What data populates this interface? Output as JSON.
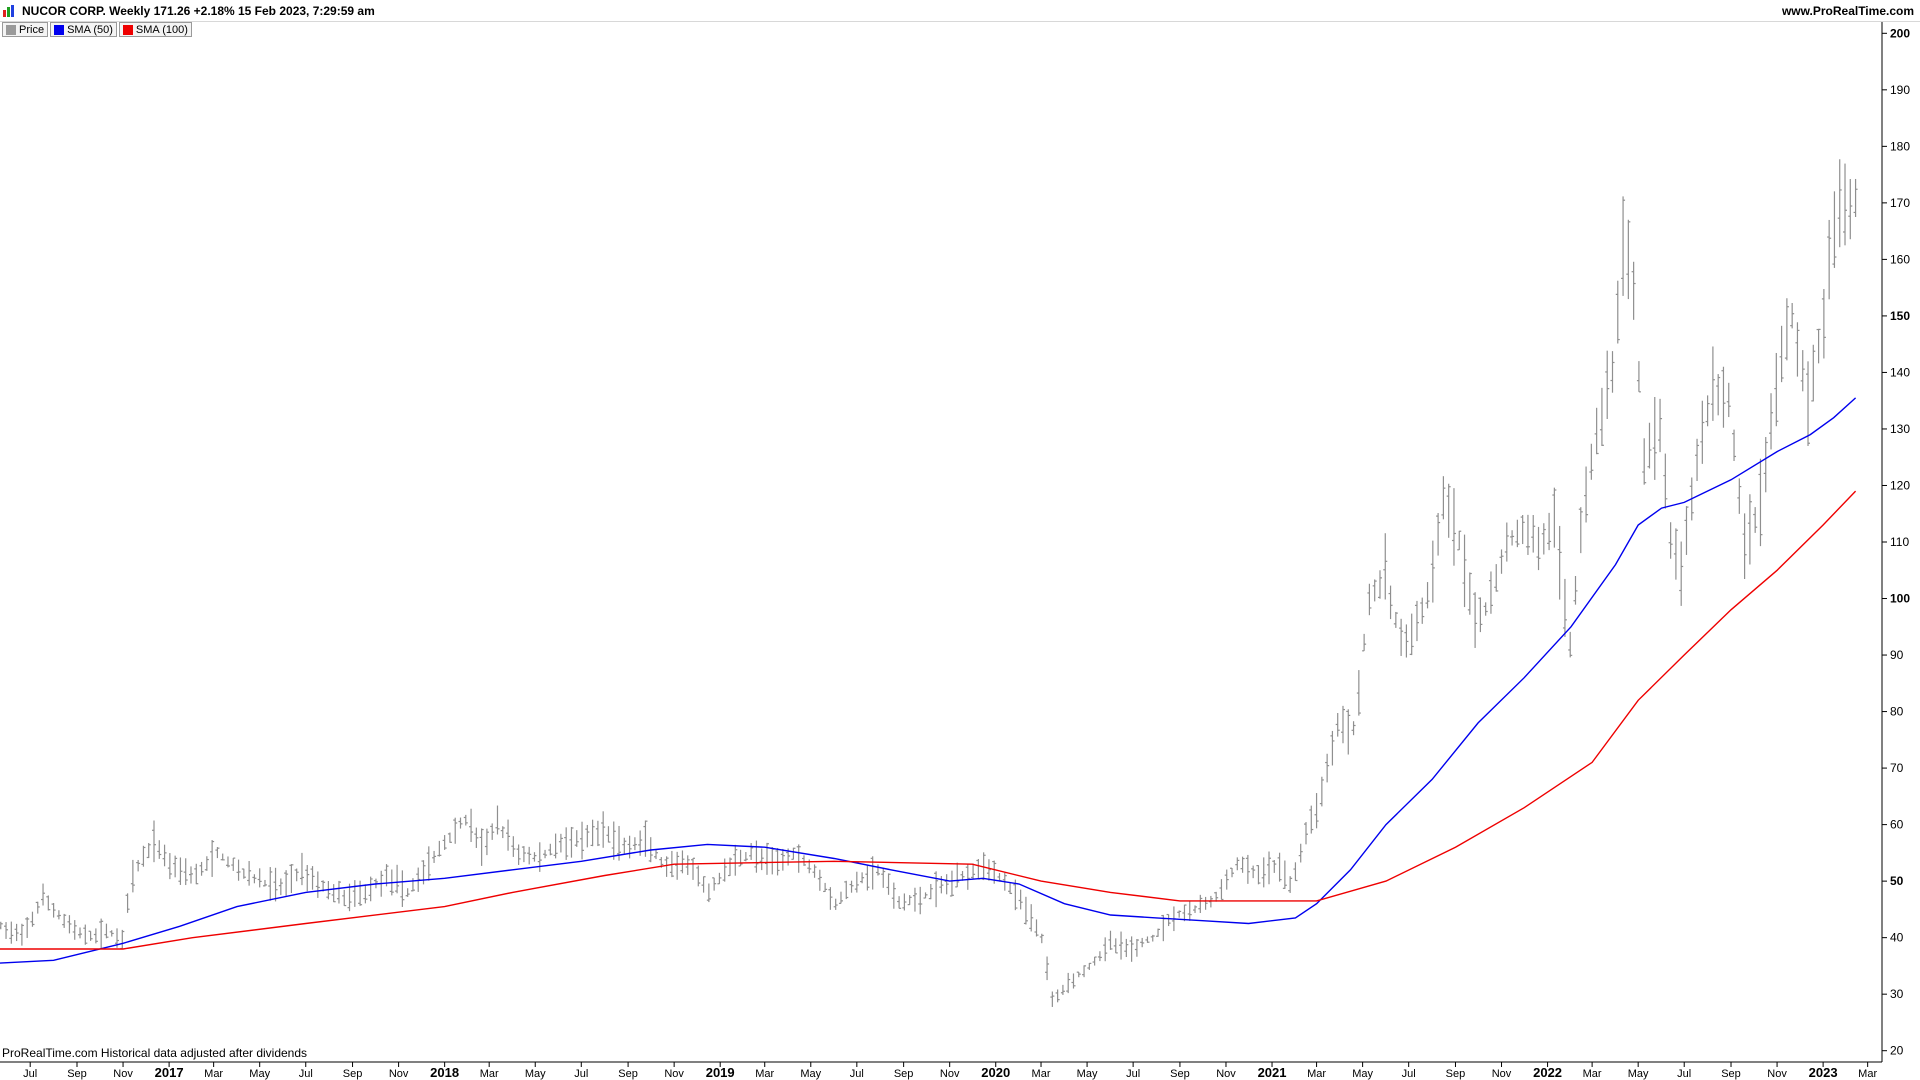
{
  "header": {
    "title": "NUCOR CORP. Weekly 171.26 +2.18% 15 Feb 2023, 7:29:59 am",
    "site": "www.ProRealTime.com"
  },
  "legend": [
    {
      "label": "Price",
      "color": "#9a9a9a"
    },
    {
      "label": "SMA (50)",
      "color": "#0000ee"
    },
    {
      "label": "SMA (100)",
      "color": "#ee0000"
    }
  ],
  "footer_note": "ProRealTime.com Historical data adjusted after dividends",
  "chart_data": {
    "type": "line",
    "title": "",
    "xlabel": "",
    "ylabel": "",
    "ylim": [
      18,
      202
    ],
    "xlim": [
      "2016-05-22",
      "2023-03-20"
    ],
    "y_ticks": [
      20,
      30,
      40,
      50,
      60,
      70,
      80,
      90,
      100,
      110,
      120,
      130,
      140,
      150,
      160,
      170,
      180,
      190,
      200
    ],
    "y_ticks_bold": [
      50,
      100,
      150,
      200
    ],
    "x_ticks": [
      {
        "date": "2016-07-01",
        "label": "Jul",
        "bold": false
      },
      {
        "date": "2016-09-01",
        "label": "Sep",
        "bold": false
      },
      {
        "date": "2016-11-01",
        "label": "Nov",
        "bold": false
      },
      {
        "date": "2017-01-01",
        "label": "2017",
        "bold": true
      },
      {
        "date": "2017-03-01",
        "label": "Mar",
        "bold": false
      },
      {
        "date": "2017-05-01",
        "label": "May",
        "bold": false
      },
      {
        "date": "2017-07-01",
        "label": "Jul",
        "bold": false
      },
      {
        "date": "2017-09-01",
        "label": "Sep",
        "bold": false
      },
      {
        "date": "2017-11-01",
        "label": "Nov",
        "bold": false
      },
      {
        "date": "2018-01-01",
        "label": "2018",
        "bold": true
      },
      {
        "date": "2018-03-01",
        "label": "Mar",
        "bold": false
      },
      {
        "date": "2018-05-01",
        "label": "May",
        "bold": false
      },
      {
        "date": "2018-07-01",
        "label": "Jul",
        "bold": false
      },
      {
        "date": "2018-09-01",
        "label": "Sep",
        "bold": false
      },
      {
        "date": "2018-11-01",
        "label": "Nov",
        "bold": false
      },
      {
        "date": "2019-01-01",
        "label": "2019",
        "bold": true
      },
      {
        "date": "2019-03-01",
        "label": "Mar",
        "bold": false
      },
      {
        "date": "2019-05-01",
        "label": "May",
        "bold": false
      },
      {
        "date": "2019-07-01",
        "label": "Jul",
        "bold": false
      },
      {
        "date": "2019-09-01",
        "label": "Sep",
        "bold": false
      },
      {
        "date": "2019-11-01",
        "label": "Nov",
        "bold": false
      },
      {
        "date": "2020-01-01",
        "label": "2020",
        "bold": true
      },
      {
        "date": "2020-03-01",
        "label": "Mar",
        "bold": false
      },
      {
        "date": "2020-05-01",
        "label": "May",
        "bold": false
      },
      {
        "date": "2020-07-01",
        "label": "Jul",
        "bold": false
      },
      {
        "date": "2020-09-01",
        "label": "Sep",
        "bold": false
      },
      {
        "date": "2020-11-01",
        "label": "Nov",
        "bold": false
      },
      {
        "date": "2021-01-01",
        "label": "2021",
        "bold": true
      },
      {
        "date": "2021-03-01",
        "label": "Mar",
        "bold": false
      },
      {
        "date": "2021-05-01",
        "label": "May",
        "bold": false
      },
      {
        "date": "2021-07-01",
        "label": "Jul",
        "bold": false
      },
      {
        "date": "2021-09-01",
        "label": "Sep",
        "bold": false
      },
      {
        "date": "2021-11-01",
        "label": "Nov",
        "bold": false
      },
      {
        "date": "2022-01-01",
        "label": "2022",
        "bold": true
      },
      {
        "date": "2022-03-01",
        "label": "Mar",
        "bold": false
      },
      {
        "date": "2022-05-01",
        "label": "May",
        "bold": false
      },
      {
        "date": "2022-07-01",
        "label": "Jul",
        "bold": false
      },
      {
        "date": "2022-09-01",
        "label": "Sep",
        "bold": false
      },
      {
        "date": "2022-11-01",
        "label": "Nov",
        "bold": false
      },
      {
        "date": "2023-01-01",
        "label": "2023",
        "bold": true
      },
      {
        "date": "2023-03-01",
        "label": "Mar",
        "bold": false
      }
    ],
    "price_anchors": [
      [
        "2016-05-23",
        42
      ],
      [
        "2016-06-20",
        40
      ],
      [
        "2016-07-18",
        47
      ],
      [
        "2016-08-15",
        43
      ],
      [
        "2016-09-12",
        40
      ],
      [
        "2016-10-10",
        41
      ],
      [
        "2016-10-31",
        40
      ],
      [
        "2016-11-14",
        51
      ],
      [
        "2016-12-12",
        57
      ],
      [
        "2017-01-02",
        53
      ],
      [
        "2017-02-06",
        51
      ],
      [
        "2017-03-06",
        55
      ],
      [
        "2017-04-03",
        52
      ],
      [
        "2017-05-01",
        50
      ],
      [
        "2017-05-29",
        49
      ],
      [
        "2017-06-26",
        52
      ],
      [
        "2017-07-24",
        49
      ],
      [
        "2017-08-21",
        47
      ],
      [
        "2017-09-18",
        48
      ],
      [
        "2017-10-16",
        51
      ],
      [
        "2017-11-13",
        48
      ],
      [
        "2017-12-11",
        53
      ],
      [
        "2018-01-08",
        58
      ],
      [
        "2018-01-29",
        61
      ],
      [
        "2018-02-19",
        56
      ],
      [
        "2018-03-12",
        60
      ],
      [
        "2018-04-09",
        55
      ],
      [
        "2018-05-07",
        54
      ],
      [
        "2018-06-04",
        57
      ],
      [
        "2018-07-02",
        57
      ],
      [
        "2018-07-30",
        59
      ],
      [
        "2018-08-27",
        56
      ],
      [
        "2018-09-24",
        57
      ],
      [
        "2018-10-22",
        52
      ],
      [
        "2018-11-19",
        53
      ],
      [
        "2018-12-17",
        48
      ],
      [
        "2019-01-14",
        53
      ],
      [
        "2019-02-11",
        55
      ],
      [
        "2019-03-11",
        53
      ],
      [
        "2019-04-08",
        55
      ],
      [
        "2019-05-06",
        52
      ],
      [
        "2019-06-03",
        46
      ],
      [
        "2019-07-01",
        50
      ],
      [
        "2019-07-29",
        52
      ],
      [
        "2019-08-26",
        46
      ],
      [
        "2019-09-23",
        47
      ],
      [
        "2019-10-21",
        49
      ],
      [
        "2019-11-18",
        51
      ],
      [
        "2019-12-16",
        53
      ],
      [
        "2020-01-13",
        50
      ],
      [
        "2020-02-10",
        45
      ],
      [
        "2020-03-02",
        40
      ],
      [
        "2020-03-16",
        29
      ],
      [
        "2020-04-06",
        32
      ],
      [
        "2020-05-04",
        35
      ],
      [
        "2020-06-01",
        39
      ],
      [
        "2020-06-29",
        38
      ],
      [
        "2020-07-27",
        40
      ],
      [
        "2020-08-24",
        44
      ],
      [
        "2020-09-21",
        45
      ],
      [
        "2020-10-19",
        47
      ],
      [
        "2020-11-16",
        53
      ],
      [
        "2020-12-14",
        51
      ],
      [
        "2021-01-11",
        53
      ],
      [
        "2021-01-25",
        49
      ],
      [
        "2021-02-15",
        58
      ],
      [
        "2021-03-08",
        66
      ],
      [
        "2021-03-29",
        78
      ],
      [
        "2021-04-19",
        77
      ],
      [
        "2021-05-10",
        100
      ],
      [
        "2021-05-31",
        104
      ],
      [
        "2021-06-21",
        92
      ],
      [
        "2021-07-12",
        95
      ],
      [
        "2021-08-02",
        103
      ],
      [
        "2021-08-16",
        118
      ],
      [
        "2021-09-06",
        110
      ],
      [
        "2021-09-27",
        95
      ],
      [
        "2021-10-18",
        100
      ],
      [
        "2021-11-08",
        110
      ],
      [
        "2021-11-29",
        112
      ],
      [
        "2021-12-20",
        110
      ],
      [
        "2022-01-10",
        113
      ],
      [
        "2022-01-31",
        92
      ],
      [
        "2022-02-14",
        112
      ],
      [
        "2022-03-07",
        130
      ],
      [
        "2022-03-28",
        140
      ],
      [
        "2022-04-11",
        162
      ],
      [
        "2022-04-25",
        155
      ],
      [
        "2022-05-09",
        125
      ],
      [
        "2022-05-30",
        130
      ],
      [
        "2022-06-13",
        110
      ],
      [
        "2022-06-27",
        105
      ],
      [
        "2022-07-18",
        125
      ],
      [
        "2022-08-08",
        138
      ],
      [
        "2022-08-29",
        135
      ],
      [
        "2022-09-19",
        110
      ],
      [
        "2022-10-10",
        117
      ],
      [
        "2022-10-31",
        138
      ],
      [
        "2022-11-21",
        150
      ],
      [
        "2022-12-12",
        135
      ],
      [
        "2023-01-02",
        150
      ],
      [
        "2023-01-16",
        165
      ],
      [
        "2023-01-30",
        170
      ],
      [
        "2023-02-13",
        171
      ]
    ],
    "series": [
      {
        "name": "SMA (50)",
        "color": "#0000ee",
        "points": [
          [
            "2016-05-22",
            35.5
          ],
          [
            "2016-08-01",
            36
          ],
          [
            "2016-11-01",
            39
          ],
          [
            "2017-01-15",
            42
          ],
          [
            "2017-04-01",
            45.5
          ],
          [
            "2017-07-01",
            48
          ],
          [
            "2017-10-01",
            49.5
          ],
          [
            "2018-01-01",
            50.5
          ],
          [
            "2018-04-01",
            52
          ],
          [
            "2018-07-01",
            53.5
          ],
          [
            "2018-10-01",
            55.5
          ],
          [
            "2018-12-15",
            56.5
          ],
          [
            "2019-03-01",
            56
          ],
          [
            "2019-06-01",
            54
          ],
          [
            "2019-08-15",
            52
          ],
          [
            "2019-11-01",
            50
          ],
          [
            "2019-12-15",
            50.5
          ],
          [
            "2020-02-01",
            49.5
          ],
          [
            "2020-04-01",
            46
          ],
          [
            "2020-06-01",
            44
          ],
          [
            "2020-08-01",
            43.5
          ],
          [
            "2020-10-01",
            43
          ],
          [
            "2020-12-01",
            42.5
          ],
          [
            "2021-02-01",
            43.5
          ],
          [
            "2021-03-01",
            46
          ],
          [
            "2021-04-15",
            52
          ],
          [
            "2021-06-01",
            60
          ],
          [
            "2021-08-01",
            68
          ],
          [
            "2021-10-01",
            78
          ],
          [
            "2021-12-01",
            86
          ],
          [
            "2022-02-01",
            95
          ],
          [
            "2022-04-01",
            106
          ],
          [
            "2022-05-01",
            113
          ],
          [
            "2022-06-01",
            116
          ],
          [
            "2022-07-01",
            117
          ],
          [
            "2022-09-01",
            121
          ],
          [
            "2022-11-01",
            126
          ],
          [
            "2022-12-15",
            129
          ],
          [
            "2023-01-15",
            132
          ],
          [
            "2023-02-13",
            135.5
          ]
        ]
      },
      {
        "name": "SMA (100)",
        "color": "#ee0000",
        "points": [
          [
            "2016-05-22",
            38
          ],
          [
            "2016-11-01",
            38
          ],
          [
            "2017-02-01",
            40
          ],
          [
            "2017-07-01",
            42.5
          ],
          [
            "2018-01-01",
            45.5
          ],
          [
            "2018-04-01",
            48
          ],
          [
            "2018-08-01",
            51
          ],
          [
            "2018-11-01",
            53
          ],
          [
            "2019-06-01",
            53.5
          ],
          [
            "2019-12-01",
            53
          ],
          [
            "2020-03-01",
            50
          ],
          [
            "2020-06-01",
            48
          ],
          [
            "2020-09-01",
            46.5
          ],
          [
            "2020-12-01",
            46.5
          ],
          [
            "2021-03-01",
            46.5
          ],
          [
            "2021-06-01",
            50
          ],
          [
            "2021-09-01",
            56
          ],
          [
            "2021-12-01",
            63
          ],
          [
            "2022-03-01",
            71
          ],
          [
            "2022-05-01",
            82
          ],
          [
            "2022-07-01",
            90
          ],
          [
            "2022-09-01",
            98
          ],
          [
            "2022-11-01",
            105
          ],
          [
            "2023-01-01",
            113
          ],
          [
            "2023-02-13",
            119
          ]
        ]
      }
    ],
    "grid": false,
    "legend_position": "top-left"
  }
}
